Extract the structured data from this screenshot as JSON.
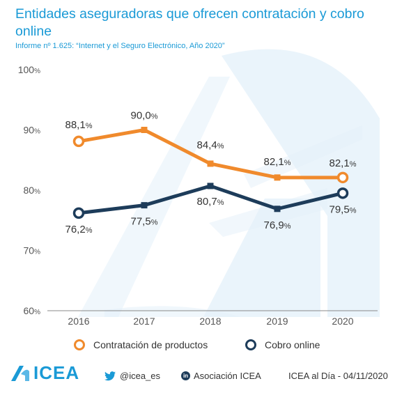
{
  "header": {
    "title": "Entidades aseguradoras que ofrecen contratación y cobro online",
    "subtitle": "Informe nº 1.625: “Internet y el Seguro Electrónico, Año 2020”"
  },
  "colors": {
    "accent": "#1a9ad6",
    "contratacion": "#f08a2c",
    "cobro": "#1d3c5a",
    "background_shape": "#e3f0f9"
  },
  "chart_data": {
    "type": "line",
    "x": [
      "2016",
      "2017",
      "2018",
      "2019",
      "2020"
    ],
    "yticks": [
      "60%",
      "70%",
      "80%",
      "90%",
      "100%"
    ],
    "ylim": [
      60,
      100
    ],
    "grid": false,
    "legend_position": "bottom",
    "series": [
      {
        "name": "Contratación de productos",
        "values": [
          88.1,
          90.0,
          84.4,
          82.1,
          82.1
        ],
        "labels": [
          "88,1",
          "90,0",
          "84,4",
          "82,1",
          "82,1"
        ],
        "color": "#f08a2c"
      },
      {
        "name": "Cobro online",
        "values": [
          76.2,
          77.5,
          80.7,
          76.9,
          79.5
        ],
        "labels": [
          "76,2",
          "77,5",
          "80,7",
          "76,9",
          "79,5"
        ],
        "color": "#1d3c5a"
      }
    ]
  },
  "footer": {
    "logo_text": "ICEA",
    "twitter_icon": "twitter-bird-icon",
    "twitter": "@icea_es",
    "linkedin_icon": "linkedin-icon",
    "linkedin": "Asociación ICEA",
    "source": "ICEA al Día - 04/11/2020"
  }
}
